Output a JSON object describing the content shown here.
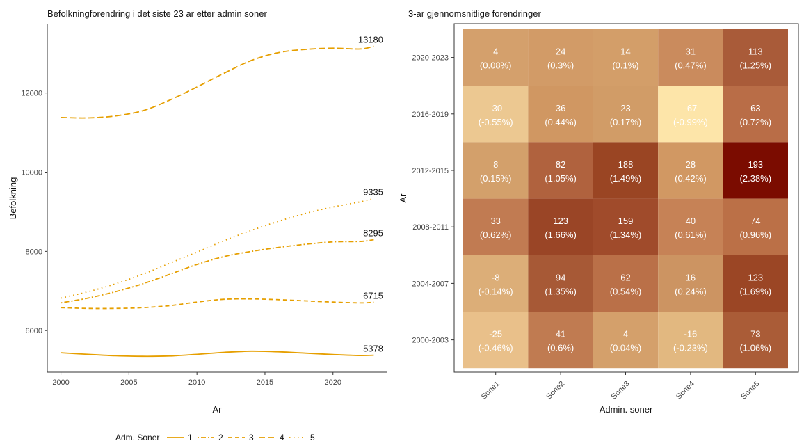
{
  "chart_data": [
    {
      "type": "line",
      "title": "Befolkningforendring i det siste 23 ar etter admin soner",
      "xlabel": "Ar",
      "ylabel": "Befolkning",
      "xlim": [
        1999,
        2024
      ],
      "ylim": [
        4950,
        13750
      ],
      "x_ticks": [
        2000,
        2005,
        2010,
        2015,
        2020
      ],
      "y_ticks": [
        6000,
        8000,
        10000,
        12000
      ],
      "grid": false,
      "color": "#E69F00",
      "legend": {
        "title": "Adm. Soner",
        "position": "bottom",
        "entries": [
          "1",
          "2",
          "3",
          "4",
          "5"
        ]
      },
      "series": [
        {
          "name": "1",
          "dash": "solid",
          "x": [
            2000,
            2002,
            2004,
            2006,
            2008,
            2010,
            2012,
            2014,
            2016,
            2018,
            2020,
            2022,
            2023
          ],
          "y": [
            5440,
            5400,
            5365,
            5350,
            5360,
            5400,
            5450,
            5480,
            5465,
            5430,
            5395,
            5370,
            5378
          ],
          "end_label": "5378"
        },
        {
          "name": "2",
          "dash": "dot-dash",
          "x": [
            2000,
            2002,
            2004,
            2006,
            2008,
            2010,
            2012,
            2014,
            2016,
            2018,
            2020,
            2022,
            2023
          ],
          "y": [
            6700,
            6820,
            6980,
            7180,
            7420,
            7670,
            7870,
            8000,
            8100,
            8180,
            8240,
            8250,
            8295
          ],
          "end_label": "8295"
        },
        {
          "name": "3",
          "dash": "dashed",
          "x": [
            2000,
            2002,
            2004,
            2006,
            2008,
            2010,
            2012,
            2014,
            2016,
            2018,
            2020,
            2022,
            2023
          ],
          "y": [
            6580,
            6560,
            6560,
            6580,
            6630,
            6720,
            6790,
            6800,
            6780,
            6750,
            6720,
            6700,
            6715
          ],
          "end_label": "6715"
        },
        {
          "name": "4",
          "dash": "long-dash",
          "x": [
            2000,
            2002,
            2004,
            2006,
            2008,
            2010,
            2012,
            2014,
            2016,
            2018,
            2020,
            2022,
            2023
          ],
          "y": [
            11380,
            11370,
            11420,
            11550,
            11820,
            12150,
            12500,
            12820,
            13020,
            13100,
            13130,
            13110,
            13180
          ],
          "end_label": "13180"
        },
        {
          "name": "5",
          "dash": "dotted",
          "x": [
            2000,
            2002,
            2004,
            2006,
            2008,
            2010,
            2012,
            2014,
            2016,
            2018,
            2020,
            2022,
            2023
          ],
          "y": [
            6820,
            6980,
            7180,
            7420,
            7700,
            7980,
            8270,
            8530,
            8760,
            8960,
            9120,
            9250,
            9335
          ],
          "end_label": "9335"
        }
      ]
    },
    {
      "type": "heatmap",
      "title": "3-ar gjennomsnitlige forendringer",
      "xlabel": "Admin. soner",
      "ylabel": "Ar",
      "x_categories": [
        "Sone1",
        "Sone2",
        "Sone3",
        "Sone4",
        "Sone5"
      ],
      "y_categories": [
        "2020-2023",
        "2016-2019",
        "2012-2015",
        "2008-2011",
        "2004-2007",
        "2000-2003"
      ],
      "values": [
        [
          4,
          24,
          14,
          31,
          113
        ],
        [
          -30,
          36,
          23,
          -67,
          63
        ],
        [
          8,
          82,
          188,
          28,
          193
        ],
        [
          33,
          123,
          159,
          40,
          74
        ],
        [
          -8,
          94,
          62,
          16,
          123
        ],
        [
          -25,
          41,
          4,
          -16,
          73
        ]
      ],
      "labels": [
        [
          "(0.08%)",
          "(0.3%)",
          "(0.1%)",
          "(0.47%)",
          "(1.25%)"
        ],
        [
          "(-0.55%)",
          "(0.44%)",
          "(0.17%)",
          "(-0.99%)",
          "(0.72%)"
        ],
        [
          "(0.15%)",
          "(1.05%)",
          "(1.49%)",
          "(0.42%)",
          "(2.38%)"
        ],
        [
          "(0.62%)",
          "(1.66%)",
          "(1.34%)",
          "(0.61%)",
          "(0.96%)"
        ],
        [
          "(-0.14%)",
          "(1.35%)",
          "(0.54%)",
          "(0.24%)",
          "(1.69%)"
        ],
        [
          "(-0.46%)",
          "(0.6%)",
          "(0.04%)",
          "(-0.23%)",
          "(1.06%)"
        ]
      ],
      "colors": [
        [
          "#D4A06C",
          "#D29B67",
          "#D39E69",
          "#CA8B5D",
          "#A95B39"
        ],
        [
          "#ECC891",
          "#D09762",
          "#D19C67",
          "#FDE5A9",
          "#B96D47"
        ],
        [
          "#D3A06B",
          "#B0623E",
          "#9A4523",
          "#D19863",
          "#7B0C00"
        ],
        [
          "#C17B52",
          "#9A4526",
          "#A04B2B",
          "#C68256",
          "#BB7047"
        ],
        [
          "#DCAE78",
          "#A75936",
          "#BA7048",
          "#CC9462",
          "#9B4625"
        ],
        [
          "#E9C08A",
          "#C07B51",
          "#D4A06B",
          "#E2B880",
          "#AA5C37"
        ]
      ]
    }
  ]
}
